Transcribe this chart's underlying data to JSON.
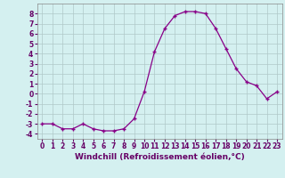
{
  "x": [
    0,
    1,
    2,
    3,
    4,
    5,
    6,
    7,
    8,
    9,
    10,
    11,
    12,
    13,
    14,
    15,
    16,
    17,
    18,
    19,
    20,
    21,
    22,
    23
  ],
  "y": [
    -3,
    -3,
    -3.5,
    -3.5,
    -3,
    -3.5,
    -3.7,
    -3.7,
    -3.5,
    -2.5,
    0.2,
    4.2,
    6.5,
    7.8,
    8.2,
    8.2,
    8.0,
    6.5,
    4.5,
    2.5,
    1.2,
    0.8,
    -0.5,
    0.2
  ],
  "line_color": "#880088",
  "marker_color": "#880088",
  "bg_color": "#d4f0f0",
  "grid_color": "#b0c8c8",
  "xlabel": "Windchill (Refroidissement éolien,°C)",
  "xlim": [
    -0.5,
    23.5
  ],
  "ylim": [
    -4.5,
    9.0
  ],
  "yticks": [
    -4,
    -3,
    -2,
    -1,
    0,
    1,
    2,
    3,
    4,
    5,
    6,
    7,
    8
  ],
  "xticks": [
    0,
    1,
    2,
    3,
    4,
    5,
    6,
    7,
    8,
    9,
    10,
    11,
    12,
    13,
    14,
    15,
    16,
    17,
    18,
    19,
    20,
    21,
    22,
    23
  ],
  "tick_fontsize": 5.5,
  "xlabel_fontsize": 6.5
}
